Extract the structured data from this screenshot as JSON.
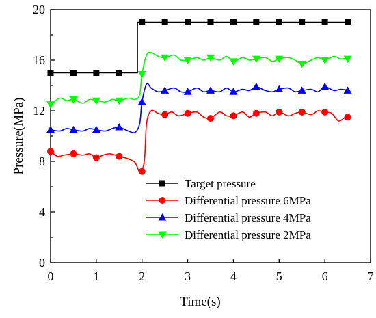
{
  "chart_data": {
    "type": "line",
    "xlabel": "Time(s)",
    "ylabel": "Pressure(MPa)",
    "xlim": [
      0,
      7
    ],
    "ylim": [
      0,
      20
    ],
    "xticks": [
      0,
      1,
      2,
      3,
      4,
      5,
      6,
      7
    ],
    "yticks": [
      0,
      4,
      8,
      12,
      16,
      20
    ],
    "legend_position": "center-right",
    "series": [
      {
        "name": "Target pressure",
        "color": "#000000",
        "marker": "square",
        "line": [
          [
            0,
            15
          ],
          [
            1.9,
            15
          ],
          [
            1.9,
            19
          ],
          [
            6.55,
            19
          ]
        ],
        "markers": [
          [
            0,
            15
          ],
          [
            0.5,
            15
          ],
          [
            1,
            15
          ],
          [
            1.5,
            15
          ],
          [
            2,
            19
          ],
          [
            2.5,
            19
          ],
          [
            3,
            19
          ],
          [
            3.5,
            19
          ],
          [
            4,
            19
          ],
          [
            4.5,
            19
          ],
          [
            5,
            19
          ],
          [
            5.5,
            19
          ],
          [
            6,
            19
          ],
          [
            6.5,
            19
          ]
        ]
      },
      {
        "name": "Differential pressure 6MPa",
        "color": "#ff0000",
        "marker": "circle",
        "line": [
          [
            0,
            8.8
          ],
          [
            0.15,
            8.4
          ],
          [
            0.3,
            8.5
          ],
          [
            0.5,
            8.6
          ],
          [
            0.7,
            8.5
          ],
          [
            0.85,
            8.6
          ],
          [
            1,
            8.3
          ],
          [
            1.15,
            8.5
          ],
          [
            1.3,
            8.6
          ],
          [
            1.5,
            8.4
          ],
          [
            1.7,
            8.2
          ],
          [
            1.85,
            7.9
          ],
          [
            1.95,
            7.2
          ],
          [
            2.05,
            8.0
          ],
          [
            2.1,
            11.0
          ],
          [
            2.2,
            12.0
          ],
          [
            2.35,
            11.8
          ],
          [
            2.5,
            11.7
          ],
          [
            2.65,
            11.9
          ],
          [
            2.8,
            11.6
          ],
          [
            3,
            11.8
          ],
          [
            3.2,
            11.9
          ],
          [
            3.35,
            11.5
          ],
          [
            3.5,
            11.4
          ],
          [
            3.7,
            11.9
          ],
          [
            3.85,
            11.6
          ],
          [
            4,
            11.6
          ],
          [
            4.2,
            11.9
          ],
          [
            4.35,
            11.5
          ],
          [
            4.5,
            11.8
          ],
          [
            4.7,
            11.9
          ],
          [
            4.85,
            11.6
          ],
          [
            5,
            11.9
          ],
          [
            5.2,
            11.6
          ],
          [
            5.35,
            11.8
          ],
          [
            5.5,
            11.9
          ],
          [
            5.7,
            11.7
          ],
          [
            5.85,
            12.0
          ],
          [
            6,
            11.9
          ],
          [
            6.15,
            11.8
          ],
          [
            6.3,
            11.2
          ],
          [
            6.45,
            11.5
          ],
          [
            6.55,
            11.6
          ]
        ],
        "markers": [
          [
            0,
            8.8
          ],
          [
            0.5,
            8.6
          ],
          [
            1,
            8.3
          ],
          [
            1.5,
            8.4
          ],
          [
            2,
            7.2
          ],
          [
            2.5,
            11.7
          ],
          [
            3,
            11.8
          ],
          [
            3.5,
            11.4
          ],
          [
            4,
            11.6
          ],
          [
            4.5,
            11.8
          ],
          [
            5,
            11.9
          ],
          [
            5.5,
            11.9
          ],
          [
            6,
            11.9
          ],
          [
            6.5,
            11.5
          ]
        ]
      },
      {
        "name": "Differential pressure 4MPa",
        "color": "#0000ff",
        "marker": "triangle-up",
        "line": [
          [
            0,
            10.5
          ],
          [
            0.2,
            10.4
          ],
          [
            0.35,
            10.6
          ],
          [
            0.5,
            10.5
          ],
          [
            0.7,
            10.4
          ],
          [
            0.85,
            10.6
          ],
          [
            1,
            10.5
          ],
          [
            1.2,
            10.4
          ],
          [
            1.35,
            10.6
          ],
          [
            1.5,
            10.7
          ],
          [
            1.7,
            10.4
          ],
          [
            1.85,
            10.3
          ],
          [
            1.95,
            11.0
          ],
          [
            2,
            12.7
          ],
          [
            2.1,
            14.1
          ],
          [
            2.2,
            13.8
          ],
          [
            2.35,
            13.5
          ],
          [
            2.5,
            13.6
          ],
          [
            2.7,
            13.8
          ],
          [
            2.85,
            13.5
          ],
          [
            3,
            13.5
          ],
          [
            3.2,
            13.8
          ],
          [
            3.35,
            13.5
          ],
          [
            3.5,
            13.6
          ],
          [
            3.7,
            13.5
          ],
          [
            3.85,
            13.8
          ],
          [
            4,
            13.5
          ],
          [
            4.2,
            13.7
          ],
          [
            4.35,
            13.6
          ],
          [
            4.5,
            13.9
          ],
          [
            4.7,
            13.6
          ],
          [
            4.85,
            13.5
          ],
          [
            5,
            13.7
          ],
          [
            5.2,
            13.8
          ],
          [
            5.35,
            13.5
          ],
          [
            5.5,
            13.6
          ],
          [
            5.7,
            13.7
          ],
          [
            5.85,
            13.5
          ],
          [
            6,
            13.9
          ],
          [
            6.2,
            13.6
          ],
          [
            6.35,
            13.7
          ],
          [
            6.55,
            13.6
          ]
        ],
        "markers": [
          [
            0,
            10.5
          ],
          [
            0.5,
            10.5
          ],
          [
            1,
            10.5
          ],
          [
            1.5,
            10.7
          ],
          [
            2,
            12.7
          ],
          [
            2.5,
            13.6
          ],
          [
            3,
            13.5
          ],
          [
            3.5,
            13.6
          ],
          [
            4,
            13.5
          ],
          [
            4.5,
            13.9
          ],
          [
            5,
            13.7
          ],
          [
            5.5,
            13.6
          ],
          [
            6,
            13.9
          ],
          [
            6.5,
            13.6
          ]
        ]
      },
      {
        "name": "Differential pressure 2MPa",
        "color": "#00ff00",
        "marker": "triangle-down",
        "line": [
          [
            0,
            12.5
          ],
          [
            0.2,
            13.0
          ],
          [
            0.35,
            12.8
          ],
          [
            0.5,
            12.9
          ],
          [
            0.7,
            12.6
          ],
          [
            0.85,
            12.9
          ],
          [
            1,
            12.8
          ],
          [
            1.2,
            12.7
          ],
          [
            1.35,
            12.9
          ],
          [
            1.5,
            12.8
          ],
          [
            1.7,
            13.0
          ],
          [
            1.85,
            12.9
          ],
          [
            1.95,
            13.3
          ],
          [
            2,
            14.9
          ],
          [
            2.1,
            16.4
          ],
          [
            2.2,
            16.6
          ],
          [
            2.35,
            16.3
          ],
          [
            2.5,
            16.2
          ],
          [
            2.7,
            16.4
          ],
          [
            2.85,
            16.0
          ],
          [
            3,
            16.0
          ],
          [
            3.2,
            16.2
          ],
          [
            3.35,
            16.0
          ],
          [
            3.5,
            16.2
          ],
          [
            3.7,
            16.0
          ],
          [
            3.85,
            16.3
          ],
          [
            4,
            15.9
          ],
          [
            4.2,
            16.2
          ],
          [
            4.35,
            16.0
          ],
          [
            4.5,
            16.1
          ],
          [
            4.7,
            16.2
          ],
          [
            4.85,
            15.9
          ],
          [
            5,
            16.1
          ],
          [
            5.2,
            16.2
          ],
          [
            5.35,
            16.0
          ],
          [
            5.5,
            15.7
          ],
          [
            5.7,
            16.0
          ],
          [
            5.85,
            16.2
          ],
          [
            6,
            16.0
          ],
          [
            6.2,
            16.3
          ],
          [
            6.35,
            16.1
          ],
          [
            6.55,
            16.2
          ]
        ],
        "markers": [
          [
            0,
            12.5
          ],
          [
            0.5,
            12.9
          ],
          [
            1,
            12.8
          ],
          [
            1.5,
            12.8
          ],
          [
            2,
            14.9
          ],
          [
            2.5,
            16.2
          ],
          [
            3,
            16.0
          ],
          [
            3.5,
            16.2
          ],
          [
            4,
            15.9
          ],
          [
            4.5,
            16.1
          ],
          [
            5,
            16.1
          ],
          [
            5.5,
            15.7
          ],
          [
            6,
            16.0
          ],
          [
            6.5,
            16.1
          ]
        ]
      }
    ]
  }
}
